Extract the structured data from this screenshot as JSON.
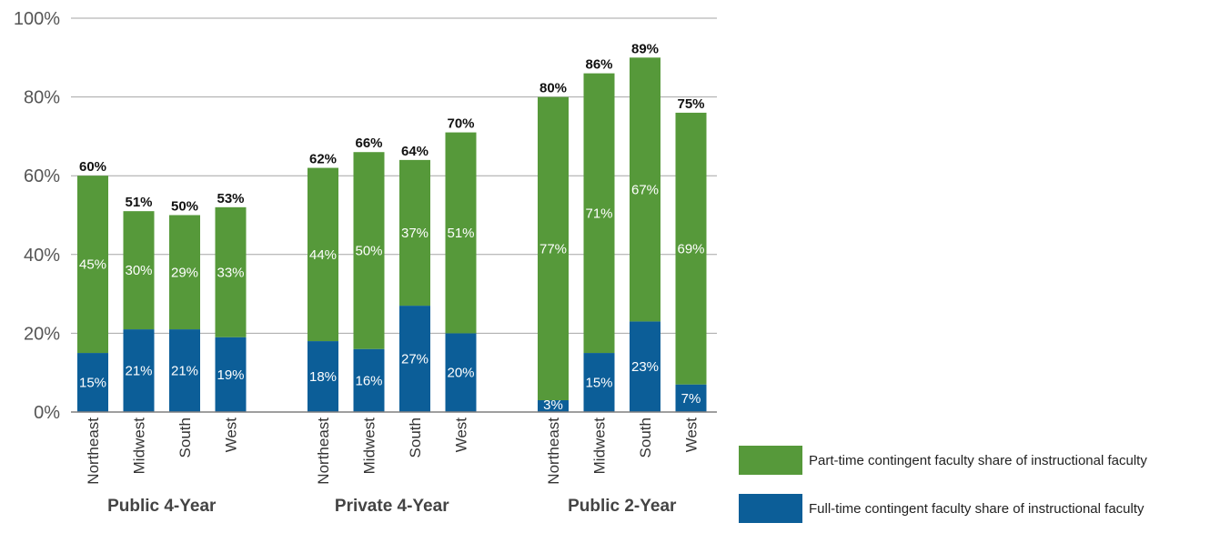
{
  "chart_data": {
    "type": "bar",
    "stacked": true,
    "ylim": [
      0,
      100
    ],
    "yticks": [
      "0%",
      "20%",
      "40%",
      "60%",
      "80%",
      "100%"
    ],
    "ytick_values": [
      0,
      20,
      40,
      60,
      80,
      100
    ],
    "groups": [
      {
        "label": "Public 4-Year",
        "bars": [
          {
            "category": "Northeast",
            "full_time": 15,
            "part_time": 45,
            "full_label": "15%",
            "part_label": "45%",
            "total_label": "60%"
          },
          {
            "category": "Midwest",
            "full_time": 21,
            "part_time": 30,
            "full_label": "21%",
            "part_label": "30%",
            "total_label": "51%"
          },
          {
            "category": "South",
            "full_time": 21,
            "part_time": 29,
            "full_label": "21%",
            "part_label": "29%",
            "total_label": "50%"
          },
          {
            "category": "West",
            "full_time": 19,
            "part_time": 33,
            "full_label": "19%",
            "part_label": "33%",
            "total_label": "53%"
          }
        ]
      },
      {
        "label": "Private 4-Year",
        "bars": [
          {
            "category": "Northeast",
            "full_time": 18,
            "part_time": 44,
            "full_label": "18%",
            "part_label": "44%",
            "total_label": "62%"
          },
          {
            "category": "Midwest",
            "full_time": 16,
            "part_time": 50,
            "full_label": "16%",
            "part_label": "50%",
            "total_label": "66%"
          },
          {
            "category": "South",
            "full_time": 27,
            "part_time": 37,
            "full_label": "27%",
            "part_label": "37%",
            "total_label": "64%"
          },
          {
            "category": "West",
            "full_time": 20,
            "part_time": 51,
            "full_label": "20%",
            "part_label": "51%",
            "total_label": "70%"
          }
        ]
      },
      {
        "label": "Public 2-Year",
        "bars": [
          {
            "category": "Northeast",
            "full_time": 3,
            "part_time": 77,
            "full_label": "3%",
            "part_label": "77%",
            "total_label": "80%"
          },
          {
            "category": "Midwest",
            "full_time": 15,
            "part_time": 71,
            "full_label": "15%",
            "part_label": "71%",
            "total_label": "86%"
          },
          {
            "category": "South",
            "full_time": 23,
            "part_time": 67,
            "full_label": "23%",
            "part_label": "67%",
            "total_label": "89%"
          },
          {
            "category": "West",
            "full_time": 7,
            "part_time": 69,
            "full_label": "7%",
            "part_label": "69%",
            "total_label": "75%"
          }
        ]
      }
    ],
    "series": [
      {
        "key": "part_time",
        "name": "Part-time contingent faculty share of instructional faculty",
        "color": "#56993a"
      },
      {
        "key": "full_time",
        "name": "Full-time contingent faculty share of instructional faculty",
        "color": "#0c5e98"
      }
    ],
    "legend_position": "bottom-right",
    "grid": true,
    "colors": {
      "grid": "#a6a6a6",
      "axis": "#7f7f7f"
    }
  }
}
